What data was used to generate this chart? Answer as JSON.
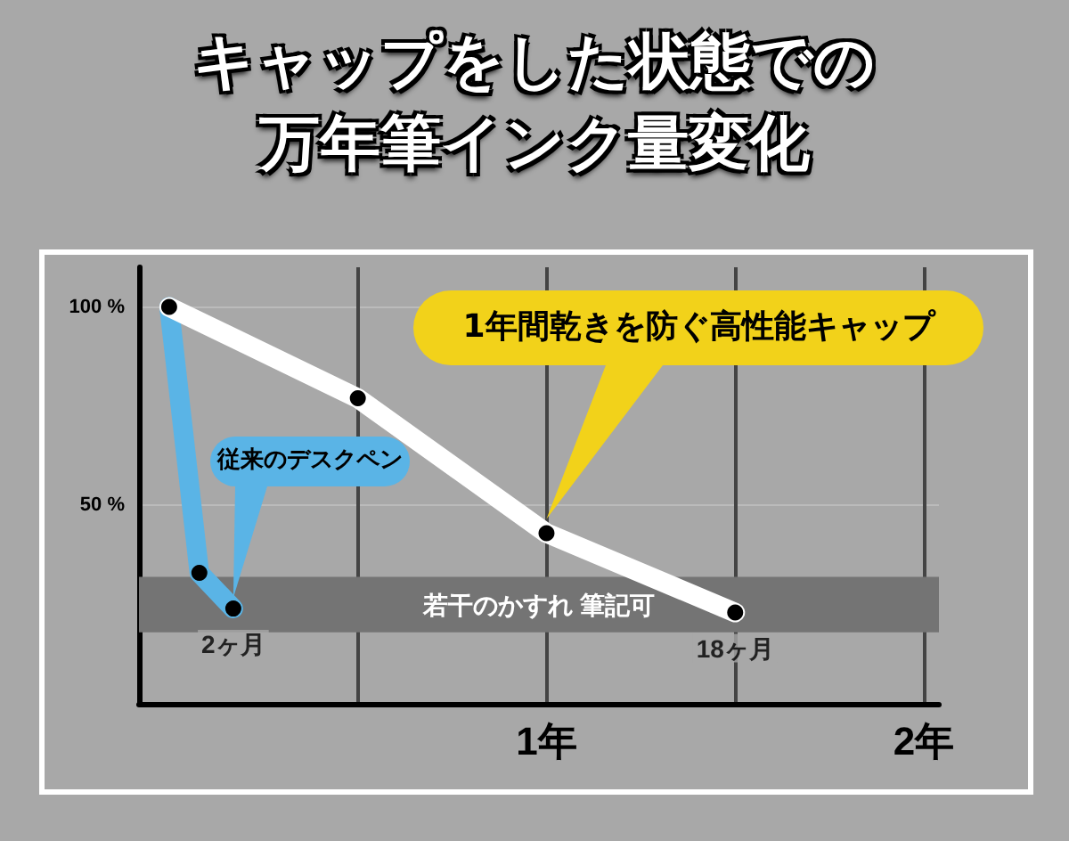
{
  "chart_data": {
    "type": "line",
    "title": "キャップをした状態での万年筆インク量変化",
    "series": [
      {
        "name": "従来のデスクペン",
        "color": "#5ab4e6",
        "x": [
          0,
          0.08,
          0.17
        ],
        "values": [
          100,
          33,
          24
        ]
      },
      {
        "color": "#ffffff",
        "x": [
          0,
          0.5,
          1,
          1.5
        ],
        "values": [
          100,
          77,
          43,
          23
        ]
      }
    ],
    "xlim": [
      -0.08,
      2.04
    ],
    "xticks": [
      {
        "value": 0.5,
        "label": null
      },
      {
        "value": 1,
        "label": "1年"
      },
      {
        "value": 1.5,
        "label": null
      },
      {
        "value": 2,
        "label": "2年"
      }
    ],
    "ylim": [
      0,
      110
    ],
    "yticks": [
      {
        "value": 50,
        "label": "50 %"
      },
      {
        "value": 100,
        "label": "100 %"
      }
    ],
    "bands": [
      {
        "axis": "y",
        "from": 18,
        "to": 32,
        "label": "若干のかすれ 筆記可",
        "color": "#747474"
      }
    ],
    "annotations": [
      {
        "text": "2ヶ月",
        "x": 0.17,
        "y": 24
      },
      {
        "text": "18ヶ月",
        "x": 1.5,
        "y": 23
      },
      "1年間乾きを防ぐ高性能キャップ"
    ],
    "grid": true,
    "marker": "circle",
    "line_style": "solid",
    "legend": false
  }
}
